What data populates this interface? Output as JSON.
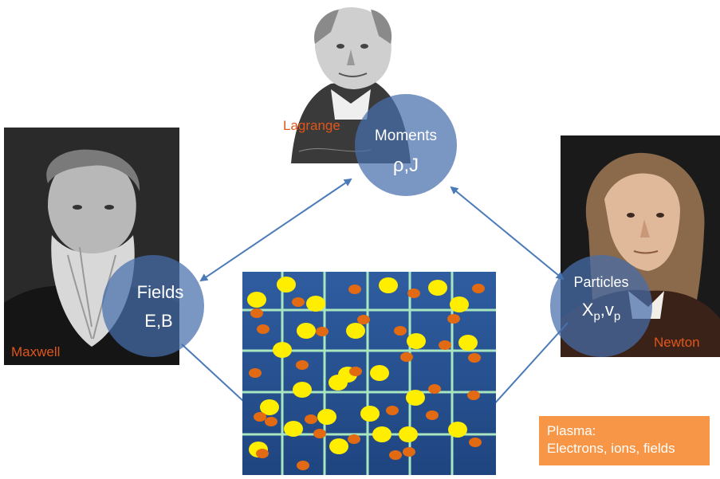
{
  "people": {
    "lagrange": "Lagrange",
    "maxwell": "Maxwell",
    "newton": "Newton"
  },
  "nodes": {
    "moments": {
      "title": "Moments",
      "symbols": "ρ,J"
    },
    "fields": {
      "title": "Fields",
      "symbols": "E,B"
    },
    "particles": {
      "title": "Particles",
      "sym_x": "X",
      "sub_p1": "p",
      "sep": ",",
      "sym_v": "v",
      "sub_p2": "p"
    }
  },
  "plasma": {
    "line1": "Plasma:",
    "line2": "Electrons, ions, fields"
  },
  "colors": {
    "circle": "#466eaa",
    "label": "#e0561a",
    "grid_bg": "#2e5a9c",
    "grid_line": "#a8e6c0",
    "ion": "#ffee00",
    "electron": "#e26a12",
    "plasma_box": "#f79646",
    "arrow": "#4a7ab8"
  }
}
